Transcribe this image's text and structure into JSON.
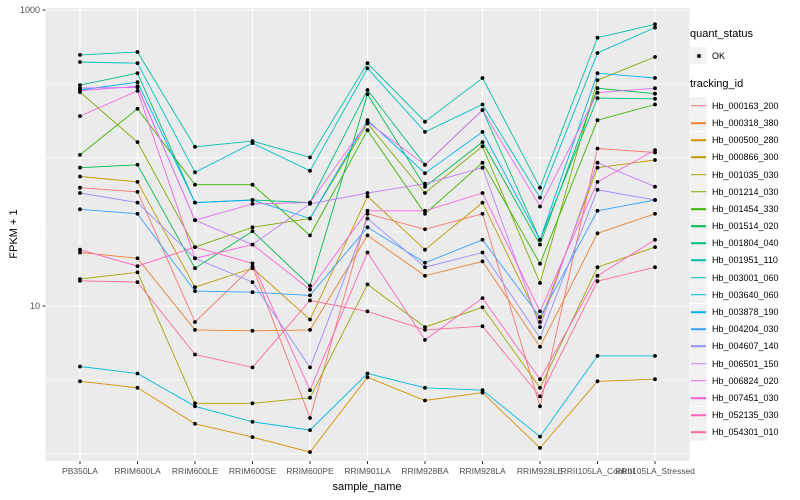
{
  "figure": {
    "y_axis": {
      "title": "FPKM + 1",
      "ticks": [
        {
          "label": "1000",
          "value": 1000
        },
        {
          "label": "10",
          "value": 10
        }
      ]
    },
    "x_axis": {
      "title": "sample_name"
    },
    "legend": {
      "quant_status_title": "quant_status",
      "quant_status_items": [
        {
          "label": "OK"
        }
      ],
      "tracking_id_title": "tracking_id"
    },
    "colors": {
      "panel_bg": "#EBEBEB",
      "grid": "#FFFFFF",
      "tick_text": "#4D4D4D",
      "axis_tick": "#333333",
      "point": "#000000",
      "key_bg": "#F2F2F2"
    }
  },
  "chart_data": {
    "type": "line",
    "title": "",
    "xlabel": "sample_name",
    "ylabel": "FPKM + 1",
    "y_scale": "log10",
    "ylim": [
      1,
      1000
    ],
    "y_major_gridlines": [
      1,
      10,
      100,
      1000
    ],
    "y_minor_gridlines": [
      3.162,
      31.62,
      316.2
    ],
    "legend_position": "right",
    "point_marker": "black dot (quant_status = OK)",
    "categories": [
      "PB350LA",
      "RRIM600LA",
      "RRIM600LE",
      "RRIM600SE",
      "RRIM600PE",
      "RRIM901LA",
      "RRIM928BA",
      "RRIM928LA",
      "RRIM928LE",
      "RRII105LA_Control",
      "RRII105LA_Stressed"
    ],
    "series": [
      {
        "name": "Hb_000163_200",
        "color": "#F8766D",
        "values": [
          63,
          59,
          7.8,
          18.5,
          1.75,
          42,
          33,
          42,
          2.1,
          116,
          109
        ]
      },
      {
        "name": "Hb_000318_380",
        "color": "#EA8331",
        "values": [
          23,
          21,
          6.9,
          6.8,
          6.9,
          30,
          16,
          20,
          5.3,
          31,
          42
        ]
      },
      {
        "name": "Hb_000500_280",
        "color": "#D89000",
        "values": [
          3.1,
          2.8,
          1.6,
          1.3,
          1.03,
          3.3,
          2.3,
          2.6,
          1.1,
          3.1,
          3.2
        ]
      },
      {
        "name": "Hb_000866_300",
        "color": "#C09B00",
        "values": [
          75,
          69,
          13.4,
          18,
          8.1,
          55,
          24,
          50,
          7.8,
          86,
          97
        ]
      },
      {
        "name": "Hb_001035_030",
        "color": "#A3A500",
        "values": [
          15.2,
          16.9,
          2.2,
          2.2,
          2.4,
          14,
          7.2,
          9.8,
          2.8,
          18.3,
          25
        ]
      },
      {
        "name": "Hb_001214_030",
        "color": "#7CAE00",
        "values": [
          279,
          128,
          25,
          34,
          39,
          171,
          58,
          120,
          14.3,
          336,
          481
        ]
      },
      {
        "name": "Hb_001454_330",
        "color": "#39B600",
        "values": [
          105,
          215,
          66,
          66,
          30,
          154,
          42,
          93,
          19.3,
          180,
          230
        ]
      },
      {
        "name": "Hb_001514_020",
        "color": "#00BB4E",
        "values": [
          86,
          90,
          18,
          32,
          13.7,
          270,
          64,
          128,
          26,
          296,
          272
        ]
      },
      {
        "name": "Hb_001804_040",
        "color": "#00BF7D",
        "values": [
          311,
          374,
          50,
          52,
          50,
          288,
          90,
          211,
          28,
          254,
          251
        ]
      },
      {
        "name": "Hb_001951_110",
        "color": "#00C1A3",
        "values": [
          497,
          520,
          119,
          130,
          101,
          437,
          176,
          347,
          63,
          650,
          800
        ]
      },
      {
        "name": "Hb_003001_060",
        "color": "#00BFC4",
        "values": [
          445,
          437,
          80,
          126,
          82,
          404,
          150,
          230,
          54,
          512,
          760
        ]
      },
      {
        "name": "Hb_003640_060",
        "color": "#00BAE0",
        "values": [
          3.9,
          3.5,
          2.1,
          1.65,
          1.45,
          3.5,
          2.8,
          2.7,
          1.31,
          4.6,
          4.6
        ]
      },
      {
        "name": "Hb_003878_190",
        "color": "#00B0F6",
        "values": [
          288,
          325,
          50,
          52,
          39,
          180,
          79,
          150,
          28,
          374,
          347
        ]
      },
      {
        "name": "Hb_004204_030",
        "color": "#35A2FF",
        "values": [
          45,
          42,
          12.6,
          12.4,
          11.8,
          34,
          19.6,
          28,
          8.4,
          44,
          52
        ]
      },
      {
        "name": "Hb_004607_140",
        "color": "#9590FF",
        "values": [
          58,
          50,
          21,
          14.5,
          3.85,
          39,
          18.3,
          23,
          6.1,
          61,
          52
        ]
      },
      {
        "name": "Hb_006501_150",
        "color": "#C77CFF",
        "values": [
          297,
          300,
          38,
          26,
          49,
          58,
          67,
          86,
          7.2,
          93,
          64
        ]
      },
      {
        "name": "Hb_006824_020",
        "color": "#E76BF3",
        "values": [
          285,
          305,
          38,
          49,
          50,
          175,
          90,
          211,
          47,
          276,
          296
        ]
      },
      {
        "name": "Hb_007451_030",
        "color": "#FA62DB",
        "values": [
          192,
          284,
          21,
          26,
          12.9,
          44,
          44,
          58,
          9.2,
          69,
          113
        ]
      },
      {
        "name": "Hb_052135_030",
        "color": "#FF62BC",
        "values": [
          24,
          18.6,
          25,
          19.4,
          2.7,
          23,
          5.9,
          11.3,
          3.2,
          16,
          28
        ]
      },
      {
        "name": "Hb_054301_010",
        "color": "#FF6A98",
        "values": [
          14.8,
          14.5,
          4.7,
          3.85,
          10.9,
          9.2,
          6.9,
          7.3,
          2.45,
          14.7,
          18.3
        ]
      }
    ]
  }
}
